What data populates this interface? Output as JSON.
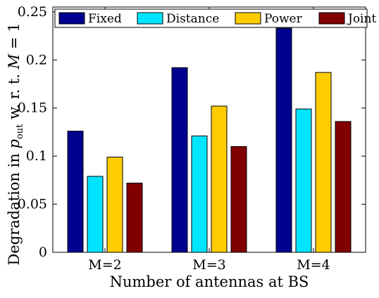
{
  "chart_data": {
    "type": "bar",
    "categories": [
      "M=2",
      "M=3",
      "M=4"
    ],
    "series": [
      {
        "name": "Fixed",
        "color": "#00008f",
        "values": [
          0.126,
          0.192,
          0.233
        ]
      },
      {
        "name": "Distance",
        "color": "#00e5ff",
        "values": [
          0.079,
          0.121,
          0.149
        ]
      },
      {
        "name": "Power",
        "color": "#ffcc00",
        "values": [
          0.099,
          0.152,
          0.187
        ]
      },
      {
        "name": "Joint",
        "color": "#800000",
        "values": [
          0.072,
          0.11,
          0.136
        ]
      }
    ],
    "title": "",
    "xlabel": "Number of antennas at BS",
    "ylabel": {
      "prefix": "Degradation in ",
      "var": "p",
      "sub": "out",
      "mid": " w. r. t. ",
      "var2": "M",
      "suffix": " = 1"
    },
    "yticks": [
      "0",
      "0.05",
      "0.1",
      "0.15",
      "0.2",
      "0.25"
    ],
    "ytick_values": [
      0,
      0.05,
      0.1,
      0.15,
      0.2,
      0.25
    ],
    "ylim": [
      0,
      0.255
    ],
    "grid": false,
    "legend_position": "top"
  }
}
